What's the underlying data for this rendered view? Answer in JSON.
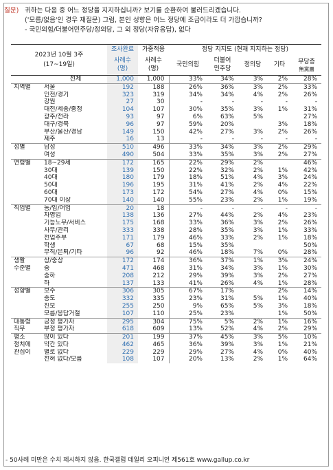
{
  "question": {
    "tag": "질문)",
    "lines": [
      "귀하는 다음 중 어느 정당을 지지하십니까? 보기를 순환하여 불러드리겠습니다.",
      "('모름/없음'인 경우 재질문) 그럼, 본인 성향은 어느 정당에 조금이라도 더 가깝습니까?",
      "- 국민의힘/더불어민주당/정의당, 그 외 정당(자유응답), 없다"
    ]
  },
  "header": {
    "date": "2023년 10월 3주",
    "date_sub": "(17~19일)",
    "col_sample1_top": "조사완료",
    "col_sample1_bot": "사례수\n(명)",
    "col_sample2_top": "가중적용",
    "col_sample2_bot": "사례수\n(명)",
    "group_title": "정당 지지도 (현재 지지하는 정당)",
    "parties": [
      "국민의힘",
      "더불어\n민주당",
      "정의당",
      "기타"
    ],
    "noparty": "무당층",
    "noparty_sub": "無黨層"
  },
  "rows": [
    {
      "g": "",
      "s": "전체",
      "a": "1,000",
      "b": "1,000",
      "v": [
        "33%",
        "34%",
        "3%",
        "2%",
        "28%"
      ],
      "total": true
    },
    {
      "g": "지역별",
      "s": "서울",
      "a": "192",
      "b": "188",
      "v": [
        "26%",
        "36%",
        "3%",
        "2%",
        "33%"
      ],
      "grp": true
    },
    {
      "g": "",
      "s": "인천/경기",
      "a": "323",
      "b": "319",
      "v": [
        "34%",
        "34%",
        "4%",
        "2%",
        "26%"
      ]
    },
    {
      "g": "",
      "s": "강원",
      "a": "27",
      "b": "30",
      "v": [
        "-",
        "-",
        "-",
        "-",
        "-"
      ]
    },
    {
      "g": "",
      "s": "대전/세종/충청",
      "a": "104",
      "b": "107",
      "v": [
        "30%",
        "35%",
        "3%",
        "1%",
        "31%"
      ]
    },
    {
      "g": "",
      "s": "광주/전라",
      "a": "93",
      "b": "97",
      "v": [
        "6%",
        "63%",
        "5%",
        "",
        "27%"
      ]
    },
    {
      "g": "",
      "s": "대구/경북",
      "a": "96",
      "b": "97",
      "v": [
        "59%",
        "20%",
        "",
        "3%",
        "18%"
      ]
    },
    {
      "g": "",
      "s": "부산/울산/경남",
      "a": "149",
      "b": "150",
      "v": [
        "42%",
        "27%",
        "3%",
        "2%",
        "26%"
      ]
    },
    {
      "g": "",
      "s": "제주",
      "a": "16",
      "b": "13",
      "v": [
        "-",
        "-",
        "-",
        "-",
        "-"
      ]
    },
    {
      "g": "성별",
      "s": "남성",
      "a": "510",
      "b": "496",
      "v": [
        "33%",
        "34%",
        "3%",
        "2%",
        "29%"
      ],
      "grp": true
    },
    {
      "g": "",
      "s": "여성",
      "a": "490",
      "b": "504",
      "v": [
        "33%",
        "35%",
        "3%",
        "2%",
        "27%"
      ]
    },
    {
      "g": "연령별",
      "s": "18~29세",
      "a": "172",
      "b": "165",
      "v": [
        "22%",
        "29%",
        "2%",
        "",
        "46%"
      ],
      "grp": true
    },
    {
      "g": "",
      "s": "30대",
      "a": "139",
      "b": "150",
      "v": [
        "22%",
        "32%",
        "2%",
        "1%",
        "42%"
      ]
    },
    {
      "g": "",
      "s": "40대",
      "a": "180",
      "b": "179",
      "v": [
        "18%",
        "51%",
        "4%",
        "3%",
        "24%"
      ]
    },
    {
      "g": "",
      "s": "50대",
      "a": "196",
      "b": "195",
      "v": [
        "31%",
        "41%",
        "2%",
        "4%",
        "22%"
      ]
    },
    {
      "g": "",
      "s": "60대",
      "a": "173",
      "b": "172",
      "v": [
        "54%",
        "27%",
        "4%",
        "0%",
        "15%"
      ]
    },
    {
      "g": "",
      "s": "70대 이상",
      "a": "140",
      "b": "140",
      "v": [
        "55%",
        "23%",
        "2%",
        "1%",
        "19%"
      ]
    },
    {
      "g": "직업별",
      "s": "농/임/어업",
      "a": "20",
      "b": "18",
      "v": [
        "-",
        "-",
        "-",
        "-",
        "-"
      ],
      "grp": true
    },
    {
      "g": "",
      "s": "자영업",
      "a": "138",
      "b": "136",
      "v": [
        "27%",
        "44%",
        "2%",
        "4%",
        "23%"
      ]
    },
    {
      "g": "",
      "s": "기능노무/서비스",
      "a": "175",
      "b": "168",
      "v": [
        "33%",
        "36%",
        "3%",
        "2%",
        "26%"
      ]
    },
    {
      "g": "",
      "s": "사무/관리",
      "a": "333",
      "b": "338",
      "v": [
        "28%",
        "35%",
        "3%",
        "1%",
        "33%"
      ]
    },
    {
      "g": "",
      "s": "전업주부",
      "a": "171",
      "b": "179",
      "v": [
        "46%",
        "33%",
        "2%",
        "1%",
        "18%"
      ]
    },
    {
      "g": "",
      "s": "학생",
      "a": "67",
      "b": "68",
      "v": [
        "15%",
        "35%",
        "",
        "",
        "50%"
      ]
    },
    {
      "g": "",
      "s": "무직/은퇴/기타",
      "a": "96",
      "b": "92",
      "v": [
        "46%",
        "18%",
        "7%",
        "0%",
        "28%"
      ]
    },
    {
      "g": "생활",
      "s": "상/중상",
      "a": "172",
      "b": "174",
      "v": [
        "36%",
        "37%",
        "1%",
        "3%",
        "24%"
      ],
      "grp": true
    },
    {
      "g": "수준별",
      "s": "중",
      "a": "471",
      "b": "468",
      "v": [
        "31%",
        "34%",
        "3%",
        "1%",
        "30%"
      ]
    },
    {
      "g": "",
      "s": "중하",
      "a": "208",
      "b": "212",
      "v": [
        "29%",
        "39%",
        "3%",
        "2%",
        "27%"
      ]
    },
    {
      "g": "",
      "s": "하",
      "a": "137",
      "b": "133",
      "v": [
        "41%",
        "26%",
        "4%",
        "1%",
        "28%"
      ]
    },
    {
      "g": "성향별",
      "s": "보수",
      "a": "306",
      "b": "305",
      "v": [
        "67%",
        "17%",
        "",
        "2%",
        "14%"
      ],
      "grp": true
    },
    {
      "g": "",
      "s": "중도",
      "a": "332",
      "b": "335",
      "v": [
        "23%",
        "31%",
        "5%",
        "1%",
        "40%"
      ]
    },
    {
      "g": "",
      "s": "진보",
      "a": "255",
      "b": "250",
      "v": [
        "9%",
        "65%",
        "5%",
        "3%",
        "18%"
      ]
    },
    {
      "g": "",
      "s": "모름/응답거절",
      "a": "107",
      "b": "110",
      "v": [
        "25%",
        "23%",
        "",
        "1%",
        "50%"
      ]
    },
    {
      "g": "대통령",
      "s": "긍정 평가자",
      "a": "295",
      "b": "304",
      "v": [
        "75%",
        "5%",
        "2%",
        "1%",
        "16%"
      ],
      "grp": true
    },
    {
      "g": "직무",
      "s": "부정 평가자",
      "a": "618",
      "b": "609",
      "v": [
        "13%",
        "52%",
        "4%",
        "2%",
        "29%"
      ]
    },
    {
      "g": "평소",
      "s": "많이 있다",
      "a": "201",
      "b": "199",
      "v": [
        "37%",
        "45%",
        "3%",
        "5%",
        "10%"
      ],
      "grp": true
    },
    {
      "g": "정치에",
      "s": "약간 있다",
      "a": "462",
      "b": "465",
      "v": [
        "36%",
        "39%",
        "3%",
        "1%",
        "21%"
      ]
    },
    {
      "g": "관심이",
      "s": "별로 없다",
      "a": "229",
      "b": "229",
      "v": [
        "29%",
        "27%",
        "4%",
        "0%",
        "40%"
      ]
    },
    {
      "g": "",
      "s": "전혀 없다/모름",
      "a": "108",
      "b": "107",
      "v": [
        "20%",
        "13%",
        "2%",
        "1%",
        "64%"
      ]
    }
  ],
  "footnote": "- 50사례 미만은 수치 제시하지 않음. 한국갤럽 데일리 오피니언 제561호 www.gallup.co.kr"
}
